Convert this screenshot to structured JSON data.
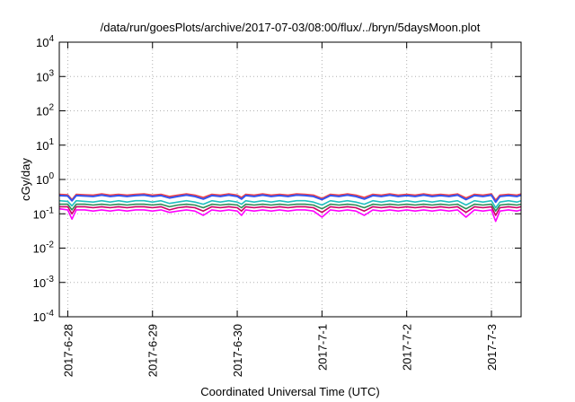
{
  "chart_data": {
    "type": "line",
    "title": "/data/run/goesPlots/archive/2017-07-03/08:00/flux/../bryn/5daysMoon.plot",
    "xlabel": "Coordinated Universal Time (UTC)",
    "ylabel": "cGy/day",
    "y_scale": "log",
    "ylim": [
      0.0001,
      10000
    ],
    "xlim": [
      -0.1,
      5.35
    ],
    "x_ticks": [
      {
        "value": 0,
        "label": "2017-6-28"
      },
      {
        "value": 1,
        "label": "2017-6-29"
      },
      {
        "value": 2,
        "label": "2017-6-30"
      },
      {
        "value": 3,
        "label": "2017-7-1"
      },
      {
        "value": 4,
        "label": "2017-7-2"
      },
      {
        "value": 5,
        "label": "2017-7-3"
      }
    ],
    "y_ticks": [
      {
        "value": 0.0001,
        "base": "10",
        "exp": "-4"
      },
      {
        "value": 0.001,
        "base": "10",
        "exp": "-3"
      },
      {
        "value": 0.01,
        "base": "10",
        "exp": "-2"
      },
      {
        "value": 0.1,
        "base": "10",
        "exp": "-1"
      },
      {
        "value": 1,
        "base": "10",
        "exp": "0"
      },
      {
        "value": 10,
        "base": "10",
        "exp": "1"
      },
      {
        "value": 100,
        "base": "10",
        "exp": "2"
      },
      {
        "value": 1000,
        "base": "10",
        "exp": "3"
      },
      {
        "value": 10000,
        "base": "10",
        "exp": "4"
      }
    ],
    "grid": true,
    "x": [
      -0.1,
      0.0,
      0.05,
      0.1,
      0.2,
      0.3,
      0.4,
      0.5,
      0.6,
      0.7,
      0.8,
      0.9,
      1.0,
      1.1,
      1.2,
      1.3,
      1.4,
      1.5,
      1.6,
      1.7,
      1.8,
      1.9,
      2.0,
      2.05,
      2.1,
      2.2,
      2.3,
      2.4,
      2.5,
      2.6,
      2.7,
      2.8,
      2.9,
      3.0,
      3.1,
      3.2,
      3.3,
      3.4,
      3.5,
      3.6,
      3.7,
      3.8,
      3.9,
      4.0,
      4.1,
      4.2,
      4.3,
      4.4,
      4.5,
      4.6,
      4.7,
      4.8,
      4.9,
      5.0,
      5.05,
      5.1,
      5.2,
      5.3,
      5.35
    ],
    "series": [
      {
        "color": "#ff00ff",
        "values": [
          0.14,
          0.13,
          0.07,
          0.13,
          0.13,
          0.12,
          0.13,
          0.12,
          0.13,
          0.12,
          0.13,
          0.13,
          0.12,
          0.13,
          0.11,
          0.12,
          0.13,
          0.12,
          0.09,
          0.13,
          0.12,
          0.13,
          0.12,
          0.09,
          0.13,
          0.12,
          0.13,
          0.12,
          0.13,
          0.12,
          0.13,
          0.13,
          0.12,
          0.08,
          0.13,
          0.12,
          0.13,
          0.12,
          0.09,
          0.13,
          0.12,
          0.13,
          0.12,
          0.13,
          0.12,
          0.13,
          0.12,
          0.13,
          0.12,
          0.13,
          0.08,
          0.13,
          0.12,
          0.13,
          0.06,
          0.12,
          0.13,
          0.12,
          0.13
        ]
      },
      {
        "color": "#cc0066",
        "values": [
          0.16,
          0.16,
          0.1,
          0.16,
          0.16,
          0.15,
          0.16,
          0.15,
          0.16,
          0.15,
          0.16,
          0.16,
          0.15,
          0.16,
          0.13,
          0.15,
          0.16,
          0.15,
          0.12,
          0.16,
          0.15,
          0.16,
          0.15,
          0.12,
          0.16,
          0.15,
          0.16,
          0.15,
          0.16,
          0.15,
          0.16,
          0.16,
          0.15,
          0.11,
          0.16,
          0.15,
          0.16,
          0.15,
          0.12,
          0.16,
          0.15,
          0.16,
          0.15,
          0.16,
          0.15,
          0.16,
          0.15,
          0.16,
          0.15,
          0.16,
          0.11,
          0.16,
          0.15,
          0.16,
          0.09,
          0.15,
          0.16,
          0.15,
          0.16
        ]
      },
      {
        "color": "#2e8b57",
        "values": [
          0.19,
          0.19,
          0.13,
          0.19,
          0.19,
          0.18,
          0.19,
          0.18,
          0.19,
          0.18,
          0.19,
          0.19,
          0.18,
          0.19,
          0.16,
          0.18,
          0.19,
          0.18,
          0.15,
          0.19,
          0.18,
          0.19,
          0.18,
          0.15,
          0.19,
          0.18,
          0.19,
          0.18,
          0.19,
          0.18,
          0.19,
          0.19,
          0.18,
          0.14,
          0.19,
          0.18,
          0.19,
          0.18,
          0.15,
          0.19,
          0.18,
          0.19,
          0.18,
          0.19,
          0.18,
          0.19,
          0.18,
          0.19,
          0.18,
          0.19,
          0.14,
          0.19,
          0.18,
          0.19,
          0.12,
          0.18,
          0.19,
          0.18,
          0.19
        ]
      },
      {
        "color": "#20c0c0",
        "values": [
          0.24,
          0.23,
          0.17,
          0.24,
          0.23,
          0.22,
          0.24,
          0.22,
          0.24,
          0.22,
          0.24,
          0.24,
          0.22,
          0.24,
          0.2,
          0.22,
          0.24,
          0.22,
          0.19,
          0.24,
          0.22,
          0.24,
          0.22,
          0.19,
          0.24,
          0.22,
          0.24,
          0.22,
          0.24,
          0.22,
          0.24,
          0.24,
          0.22,
          0.18,
          0.24,
          0.22,
          0.24,
          0.22,
          0.19,
          0.24,
          0.22,
          0.24,
          0.22,
          0.24,
          0.22,
          0.24,
          0.22,
          0.24,
          0.22,
          0.24,
          0.18,
          0.24,
          0.22,
          0.24,
          0.15,
          0.22,
          0.24,
          0.22,
          0.24
        ]
      },
      {
        "color": "#ff4040",
        "values": [
          0.37,
          0.36,
          0.26,
          0.37,
          0.36,
          0.35,
          0.38,
          0.35,
          0.37,
          0.35,
          0.37,
          0.38,
          0.35,
          0.37,
          0.32,
          0.35,
          0.38,
          0.35,
          0.3,
          0.37,
          0.35,
          0.38,
          0.35,
          0.3,
          0.37,
          0.35,
          0.38,
          0.35,
          0.37,
          0.35,
          0.38,
          0.37,
          0.35,
          0.28,
          0.37,
          0.35,
          0.38,
          0.35,
          0.3,
          0.37,
          0.35,
          0.38,
          0.35,
          0.37,
          0.35,
          0.38,
          0.35,
          0.37,
          0.35,
          0.38,
          0.29,
          0.37,
          0.35,
          0.38,
          0.25,
          0.35,
          0.37,
          0.35,
          0.38
        ]
      },
      {
        "color": "#3355ee",
        "values": [
          0.34,
          0.33,
          0.24,
          0.34,
          0.33,
          0.32,
          0.35,
          0.32,
          0.34,
          0.32,
          0.34,
          0.35,
          0.32,
          0.34,
          0.29,
          0.32,
          0.35,
          0.32,
          0.27,
          0.34,
          0.32,
          0.35,
          0.32,
          0.27,
          0.34,
          0.32,
          0.35,
          0.32,
          0.34,
          0.32,
          0.35,
          0.34,
          0.32,
          0.26,
          0.34,
          0.32,
          0.35,
          0.32,
          0.27,
          0.34,
          0.32,
          0.35,
          0.32,
          0.34,
          0.32,
          0.35,
          0.32,
          0.34,
          0.32,
          0.35,
          0.26,
          0.34,
          0.32,
          0.35,
          0.22,
          0.32,
          0.34,
          0.32,
          0.35
        ]
      }
    ]
  }
}
